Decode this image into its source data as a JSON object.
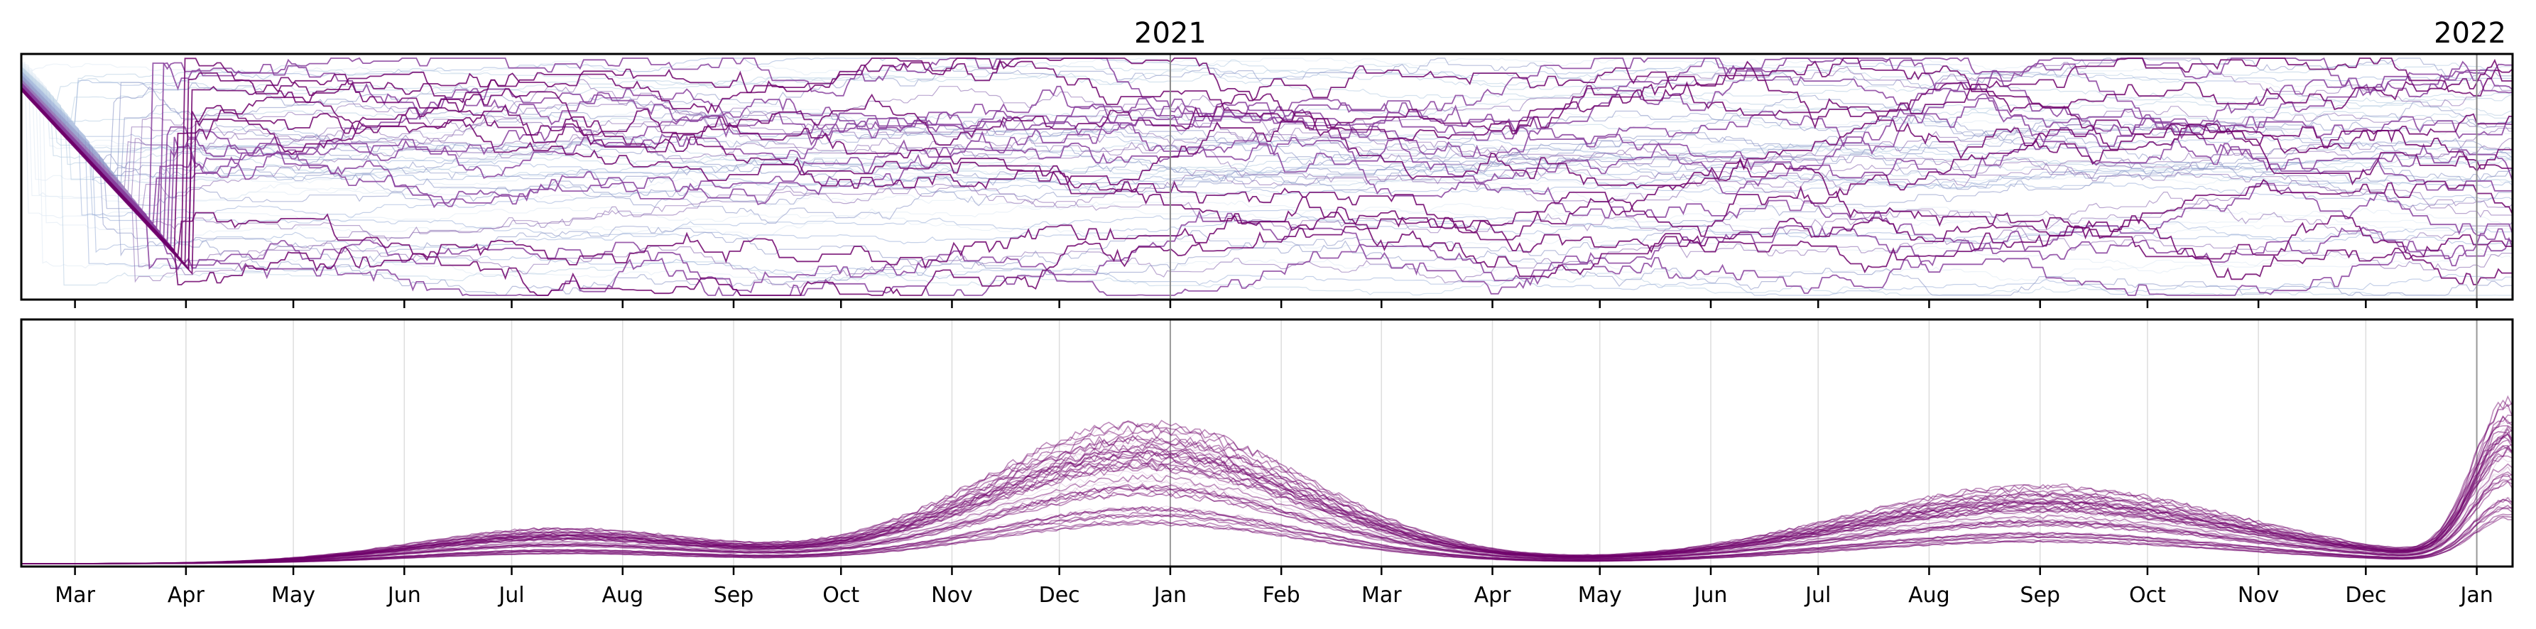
{
  "chart_data": [
    {
      "type": "line",
      "panel": "rank",
      "description_visible": "many overlapping series; colors range from pale blue to dark purple",
      "x_range": [
        "2020-02-15",
        "2022-01-11"
      ],
      "year_labels": [
        "2021",
        "2022"
      ],
      "year_boundaries": [
        "2021-01-01",
        "2022-01-01"
      ],
      "y_ticks_visible": false,
      "grid": false,
      "series_colors": [
        "#dfeaf3",
        "#b9cfe3",
        "#9fb3d9",
        "#8c96c6",
        "#8c6bb1",
        "#88419d",
        "#6e016b"
      ],
      "series_count_approx": 60
    },
    {
      "type": "line",
      "panel": "level",
      "x_range": [
        "2020-02-15",
        "2022-01-11"
      ],
      "x_tick_dates": [
        "2020-03-01",
        "2020-04-01",
        "2020-05-01",
        "2020-06-01",
        "2020-07-01",
        "2020-08-01",
        "2020-09-01",
        "2020-10-01",
        "2020-11-01",
        "2020-12-01",
        "2021-01-01",
        "2021-02-01",
        "2021-03-01",
        "2021-04-01",
        "2021-05-01",
        "2021-06-01",
        "2021-07-01",
        "2021-08-01",
        "2021-09-01",
        "2021-10-01",
        "2021-11-01",
        "2021-12-01",
        "2022-01-01"
      ],
      "x_tick_labels": [
        "Mar",
        "Apr",
        "May",
        "Jun",
        "Jul",
        "Aug",
        "Sep",
        "Oct",
        "Nov",
        "Dec",
        "Jan",
        "Feb",
        "Mar",
        "Apr",
        "May",
        "Jun",
        "Jul",
        "Aug",
        "Sep",
        "Oct",
        "Nov",
        "Dec",
        "Jan"
      ],
      "y_ticks_visible": false,
      "grid": "vertical at month ticks",
      "year_boundaries": [
        "2021-01-01",
        "2022-01-01"
      ],
      "series_color": "#6e016b",
      "series_count_approx": 50,
      "peaks_visible": [
        "2020-07-15",
        "2020-12-25",
        "2021-09-01",
        "2022-01-10"
      ]
    }
  ]
}
